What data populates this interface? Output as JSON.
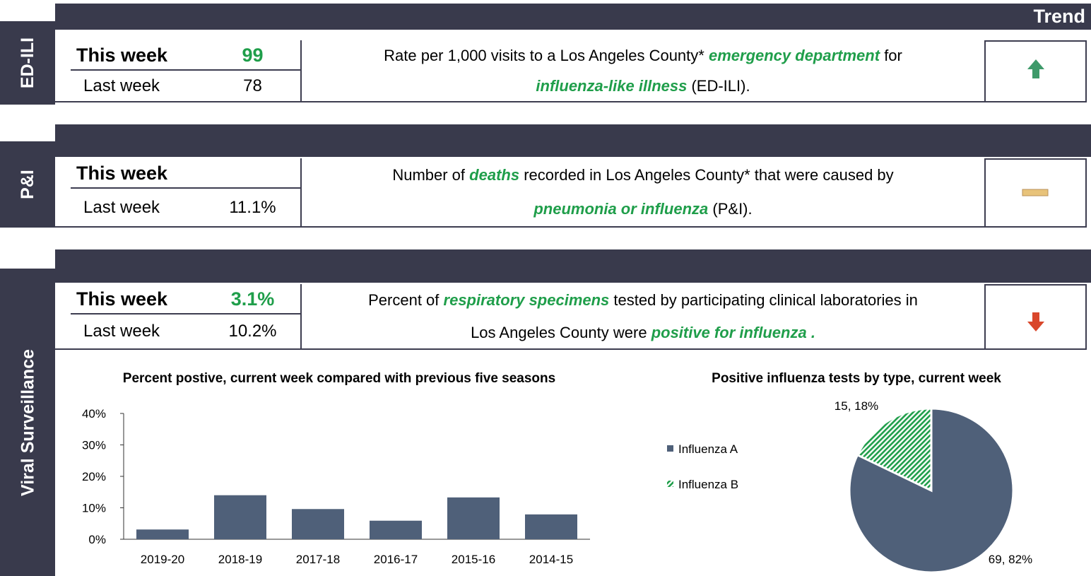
{
  "sections": [
    {
      "label": "ED-ILI",
      "header": "Trend",
      "this_week": {
        "label": "This week",
        "value": "99"
      },
      "last_week": {
        "label": "Last week",
        "value": "78"
      },
      "description": [
        [
          {
            "text": "Rate per 1,000 visits to a Los Angeles County*"
          },
          {
            "text": "emergency department",
            "em": true
          },
          {
            "text": "for"
          }
        ],
        [
          {
            "text": "influenza-like illness",
            "em": true
          },
          {
            "text": "(ED-ILI)."
          }
        ]
      ],
      "trend": "up"
    },
    {
      "label": "P&I",
      "this_week": {
        "label": "This week"
      },
      "last_week": {
        "label": "Last week",
        "value": "11.1%"
      },
      "description": [
        [
          {
            "text": "Number of"
          },
          {
            "text": "deaths",
            "em": true
          },
          {
            "text": "recorded in Los Angeles County* that were caused by"
          }
        ],
        [
          {
            "text": "pneumonia or influenza",
            "em": true
          },
          {
            "text": "(P&I)."
          }
        ]
      ],
      "trend": "flat"
    },
    {
      "label": "Viral Surveillance",
      "this_week": {
        "label": "This week",
        "value": "3.1%"
      },
      "last_week": {
        "label": "Last week",
        "value": "10.2%"
      },
      "description": [
        [
          {
            "text": "Percent of"
          },
          {
            "text": "respiratory specimens",
            "em": true
          },
          {
            "text": "tested by participating clinical laboratories in"
          }
        ],
        [
          {
            "text": "Los Angeles County  were"
          },
          {
            "text": "positive for influenza .",
            "em": true
          }
        ]
      ],
      "trend": "down"
    }
  ],
  "chart_data": [
    {
      "type": "bar",
      "title": "Percent postive, current week compared with previous five seasons",
      "categories": [
        "2019-20",
        "2018-19",
        "2017-18",
        "2016-17",
        "2015-16",
        "2014-15"
      ],
      "values": [
        3.1,
        14,
        9.6,
        5.9,
        13.3,
        7.9
      ],
      "color": "#4f6079",
      "ylim": [
        0,
        40
      ],
      "yticks": [
        {
          "value": 0,
          "label": "0%"
        },
        {
          "value": 10,
          "label": "10%"
        },
        {
          "value": 20,
          "label": "20%"
        },
        {
          "value": 30,
          "label": "30%"
        },
        {
          "value": 40,
          "label": "40%"
        }
      ]
    },
    {
      "type": "pie",
      "title": "Positive influenza tests by type, current week",
      "series": [
        {
          "name": "Influenza A",
          "color": "#4f6079"
        },
        {
          "name": "Influenza B",
          "color": "#1f9e4a"
        }
      ],
      "values": [
        69,
        15
      ],
      "value_labels": [
        "69, 82%",
        "15, 18%"
      ]
    }
  ]
}
